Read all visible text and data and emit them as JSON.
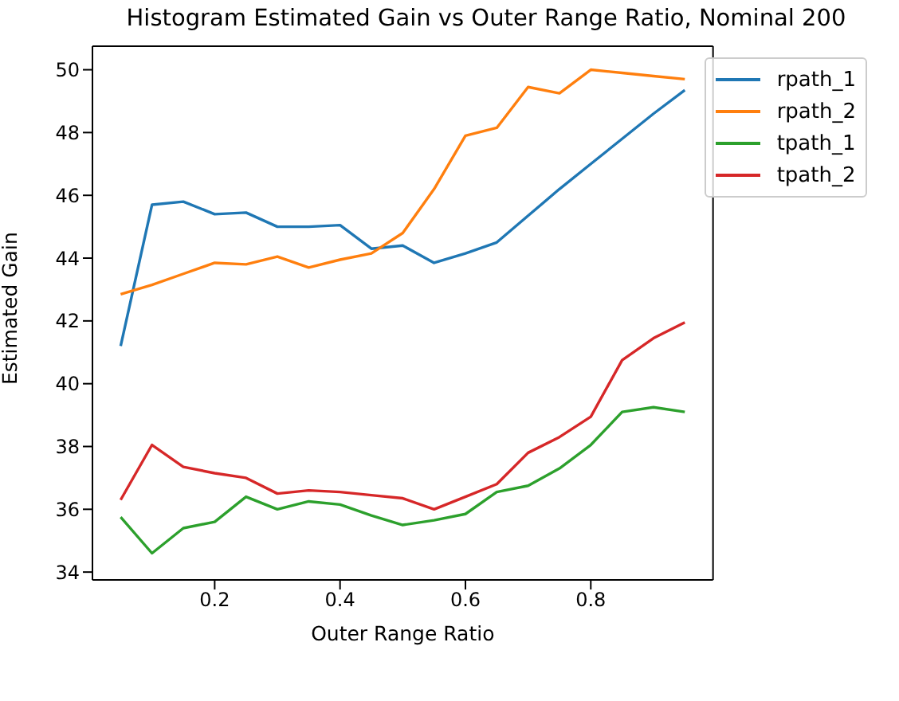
{
  "chart_data": {
    "type": "line",
    "title": "Histogram Estimated Gain vs Outer Range Ratio, Nominal 200",
    "xlabel": "Outer Range Ratio",
    "ylabel": "Estimated Gain",
    "x": [
      0.05,
      0.1,
      0.15,
      0.2,
      0.25,
      0.3,
      0.35,
      0.4,
      0.45,
      0.5,
      0.55,
      0.6,
      0.65,
      0.7,
      0.75,
      0.8,
      0.85,
      0.9,
      0.95
    ],
    "series": [
      {
        "name": "rpath_1",
        "color": "#1f77b4",
        "values": [
          41.2,
          45.7,
          45.8,
          45.4,
          45.45,
          45.0,
          45.0,
          45.05,
          44.3,
          44.4,
          43.85,
          44.15,
          44.5,
          45.35,
          46.2,
          47.0,
          47.8,
          48.6,
          49.35
        ]
      },
      {
        "name": "rpath_2",
        "color": "#ff7f0e",
        "values": [
          42.85,
          43.15,
          43.5,
          43.85,
          43.8,
          44.05,
          43.7,
          43.95,
          44.15,
          44.8,
          46.2,
          47.9,
          48.15,
          49.45,
          49.25,
          50.0,
          49.9,
          49.8,
          49.7
        ]
      },
      {
        "name": "tpath_1",
        "color": "#2ca02c",
        "values": [
          35.75,
          34.6,
          35.4,
          35.6,
          36.4,
          36.0,
          36.25,
          36.15,
          35.8,
          35.5,
          35.65,
          35.85,
          36.55,
          36.75,
          37.3,
          38.05,
          39.1,
          39.25,
          39.1
        ]
      },
      {
        "name": "tpath_2",
        "color": "#d62728",
        "values": [
          36.3,
          38.05,
          37.35,
          37.15,
          37.0,
          36.5,
          36.6,
          36.55,
          36.45,
          36.35,
          36.0,
          36.4,
          36.8,
          37.8,
          38.3,
          38.95,
          40.75,
          41.45,
          41.95
        ]
      }
    ],
    "xlim": [
      0.005,
      0.995
    ],
    "ylim": [
      33.75,
      50.75
    ],
    "xticks": [
      {
        "value": 0.2,
        "label": "0.2"
      },
      {
        "value": 0.4,
        "label": "0.4"
      },
      {
        "value": 0.6,
        "label": "0.6"
      },
      {
        "value": 0.8,
        "label": "0.8"
      }
    ],
    "yticks": [
      34,
      36,
      38,
      40,
      42,
      44,
      46,
      48,
      50
    ],
    "legend": "top right",
    "grid": false,
    "marker": "none",
    "line_style": "solid"
  }
}
